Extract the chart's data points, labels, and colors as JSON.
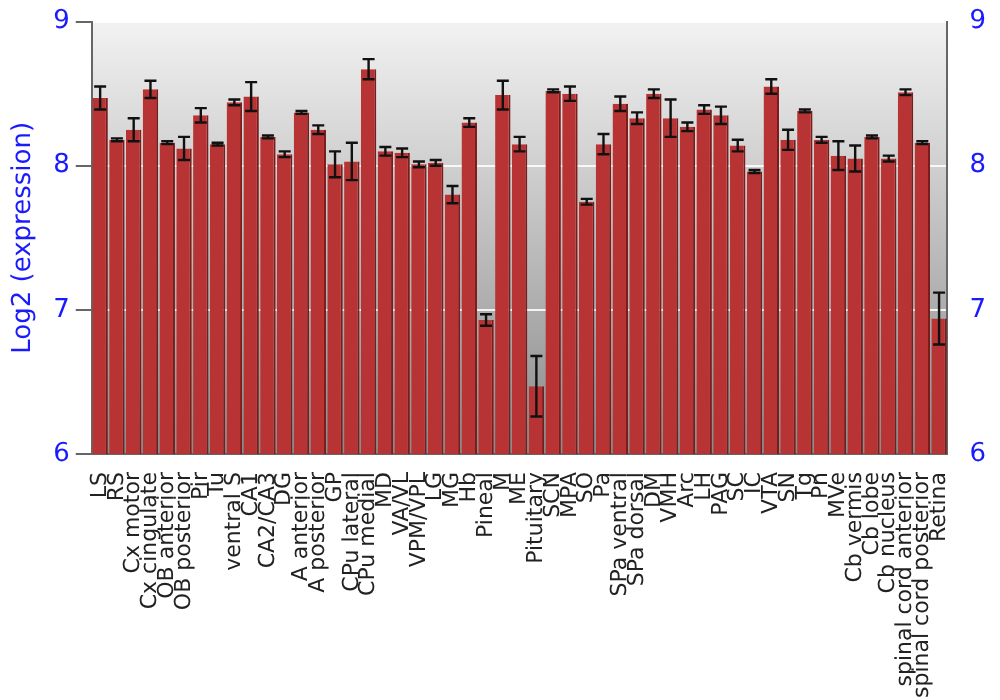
{
  "chart_data": {
    "type": "bar",
    "ylabel": "Log2 (expression)",
    "categories": [
      "LS",
      "RS",
      "Cx motor",
      "Cx cingulate",
      "OB anterior",
      "OB posterior",
      "Pir",
      "Tu",
      "ventral S",
      "CA1",
      "CA2/CA3",
      "DG",
      "A anterior",
      "A posterior",
      "GP",
      "CPu lateral",
      "CPu medial",
      "MD",
      "VA/VL",
      "VPM/VPL",
      "LG",
      "MG",
      "Hb",
      "Pineal",
      "M",
      "ME",
      "Pituitary",
      "SCN",
      "MPA",
      "SO",
      "Pa",
      "SPa ventral",
      "SPa dorsal",
      "DM",
      "VMH",
      "Arc",
      "LH",
      "PAG",
      "SC",
      "IC",
      "VTA",
      "SN",
      "Tg",
      "Pn",
      "MVe",
      "Cb vermis",
      "Cb lobe",
      "Cb nucleus",
      "spinal cord anterior",
      "spinal cord posterior",
      "Retina"
    ],
    "values": [
      8.47,
      8.18,
      8.25,
      8.53,
      8.16,
      8.12,
      8.35,
      8.15,
      8.44,
      8.48,
      8.2,
      8.08,
      8.37,
      8.25,
      8.01,
      8.03,
      8.67,
      8.1,
      8.09,
      8.01,
      8.02,
      7.8,
      8.3,
      6.93,
      8.49,
      8.15,
      6.47,
      8.52,
      8.5,
      7.75,
      8.15,
      8.43,
      8.33,
      8.5,
      8.33,
      8.27,
      8.39,
      8.35,
      8.14,
      7.96,
      8.55,
      8.18,
      8.38,
      8.18,
      8.07,
      8.05,
      8.2,
      8.05,
      8.51,
      8.16,
      6.94
    ],
    "errors": [
      0.08,
      0.01,
      0.08,
      0.06,
      0.01,
      0.08,
      0.05,
      0.01,
      0.02,
      0.1,
      0.01,
      0.02,
      0.01,
      0.03,
      0.09,
      0.13,
      0.07,
      0.03,
      0.03,
      0.02,
      0.02,
      0.06,
      0.03,
      0.04,
      0.1,
      0.05,
      0.21,
      0.01,
      0.05,
      0.02,
      0.07,
      0.05,
      0.04,
      0.03,
      0.13,
      0.03,
      0.03,
      0.06,
      0.04,
      0.01,
      0.05,
      0.07,
      0.01,
      0.02,
      0.1,
      0.09,
      0.01,
      0.02,
      0.02,
      0.01,
      0.18
    ],
    "color": "#b83434",
    "ylim": [
      6,
      9
    ],
    "yticks": [
      6,
      7,
      8,
      9
    ],
    "y2lim": [
      6,
      9
    ],
    "y2ticks": [
      6,
      7,
      8,
      9
    ],
    "grid": "y"
  }
}
